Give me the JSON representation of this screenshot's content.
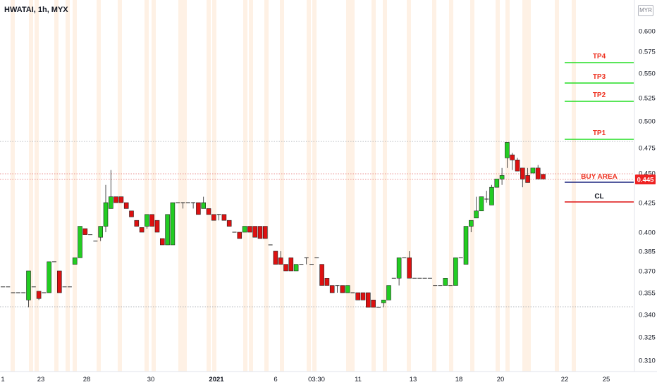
{
  "header": {
    "title": "HWATAI, 1h, MYX",
    "currency": "MYR"
  },
  "chart_data": {
    "type": "candlestick",
    "symbol": "HWATAI",
    "interval": "1h",
    "exchange": "MYX",
    "ylim": [
      0.305,
      0.612
    ],
    "y_ticks": [
      0.6,
      0.575,
      0.55,
      0.525,
      0.5,
      0.475,
      0.45,
      0.425,
      0.4,
      0.385,
      0.37,
      0.355,
      0.34,
      0.325,
      0.31
    ],
    "x_tick_labels": [
      "1",
      "23",
      "28",
      "30",
      "2021",
      "6",
      "03:30",
      "11",
      "13",
      "18",
      "20",
      "22",
      "25"
    ],
    "current_price": "0.445",
    "colors": {
      "up": "#22cc22",
      "down": "#dd1111",
      "level_green": "#22dd22",
      "level_red": "#dd1111",
      "level_blue": "#1a237e",
      "label_red": "#ee3322"
    },
    "levels": [
      {
        "label": "TP4",
        "value": 0.562,
        "color": "green"
      },
      {
        "label": "TP3",
        "value": 0.541,
        "color": "green"
      },
      {
        "label": "TP2",
        "value": 0.522,
        "color": "green"
      },
      {
        "label": "TP1",
        "value": 0.48,
        "color": "green"
      },
      {
        "label": "BUY AREA",
        "value": 0.443,
        "color": "blue"
      },
      {
        "label": "CL",
        "value": 0.425,
        "color": "red"
      }
    ],
    "candles": [
      [
        0.359,
        0.359,
        0.359,
        0.359
      ],
      [
        0.359,
        0.359,
        0.359,
        0.359
      ],
      [
        0.355,
        0.355,
        0.355,
        0.355
      ],
      [
        0.355,
        0.355,
        0.355,
        0.355
      ],
      [
        0.355,
        0.355,
        0.355,
        0.355
      ],
      [
        0.35,
        0.37,
        0.345,
        0.37
      ],
      [
        0.359,
        0.359,
        0.359,
        0.359
      ],
      [
        0.356,
        0.356,
        0.35,
        0.351
      ],
      [
        0.355,
        0.355,
        0.355,
        0.355
      ],
      [
        0.355,
        0.377,
        0.355,
        0.377
      ],
      [
        0.377,
        0.377,
        0.377,
        0.377
      ],
      [
        0.37,
        0.37,
        0.355,
        0.355
      ],
      [
        0.359,
        0.359,
        0.359,
        0.359
      ],
      [
        0.359,
        0.359,
        0.359,
        0.359
      ],
      [
        0.375,
        0.38,
        0.375,
        0.38
      ],
      [
        0.38,
        0.405,
        0.38,
        0.405
      ],
      [
        0.403,
        0.403,
        0.398,
        0.398
      ],
      [
        0.398,
        0.398,
        0.398,
        0.398
      ],
      [
        0.393,
        0.393,
        0.393,
        0.393
      ],
      [
        0.396,
        0.405,
        0.393,
        0.405
      ],
      [
        0.405,
        0.44,
        0.4,
        0.425
      ],
      [
        0.42,
        0.453,
        0.42,
        0.43
      ],
      [
        0.43,
        0.43,
        0.425,
        0.425
      ],
      [
        0.43,
        0.43,
        0.425,
        0.425
      ],
      [
        0.425,
        0.425,
        0.42,
        0.42
      ],
      [
        0.418,
        0.418,
        0.413,
        0.413
      ],
      [
        0.41,
        0.41,
        0.405,
        0.405
      ],
      [
        0.404,
        0.404,
        0.4,
        0.4
      ],
      [
        0.405,
        0.415,
        0.403,
        0.415
      ],
      [
        0.415,
        0.415,
        0.405,
        0.405
      ],
      [
        0.41,
        0.41,
        0.4,
        0.4
      ],
      [
        0.395,
        0.395,
        0.39,
        0.39
      ],
      [
        0.39,
        0.415,
        0.39,
        0.415
      ],
      [
        0.39,
        0.425,
        0.39,
        0.425
      ],
      [
        0.425,
        0.425,
        0.425,
        0.425
      ],
      [
        0.425,
        0.425,
        0.42,
        0.425
      ],
      [
        0.425,
        0.425,
        0.425,
        0.425
      ],
      [
        0.425,
        0.425,
        0.42,
        0.425
      ],
      [
        0.425,
        0.425,
        0.415,
        0.415
      ],
      [
        0.42,
        0.43,
        0.42,
        0.425
      ],
      [
        0.42,
        0.42,
        0.415,
        0.415
      ],
      [
        0.415,
        0.415,
        0.41,
        0.41
      ],
      [
        0.415,
        0.415,
        0.41,
        0.415
      ],
      [
        0.415,
        0.415,
        0.41,
        0.41
      ],
      [
        0.41,
        0.41,
        0.405,
        0.405
      ],
      [
        0.4,
        0.4,
        0.4,
        0.4
      ],
      [
        0.4,
        0.4,
        0.395,
        0.395
      ],
      [
        0.4,
        0.405,
        0.4,
        0.405
      ],
      [
        0.405,
        0.405,
        0.4,
        0.4
      ],
      [
        0.405,
        0.405,
        0.396,
        0.396
      ],
      [
        0.405,
        0.405,
        0.395,
        0.395
      ],
      [
        0.405,
        0.405,
        0.395,
        0.395
      ],
      [
        0.39,
        0.39,
        0.39,
        0.39
      ],
      [
        0.385,
        0.385,
        0.375,
        0.375
      ],
      [
        0.38,
        0.385,
        0.375,
        0.375
      ],
      [
        0.375,
        0.375,
        0.37,
        0.37
      ],
      [
        0.38,
        0.38,
        0.37,
        0.37
      ],
      [
        0.37,
        0.375,
        0.37,
        0.375
      ],
      [
        0.375,
        0.375,
        0.375,
        0.375
      ],
      [
        0.38,
        0.38,
        0.375,
        0.38
      ],
      [
        0.375,
        0.375,
        0.375,
        0.375
      ],
      [
        0.38,
        0.38,
        0.38,
        0.38
      ],
      [
        0.375,
        0.375,
        0.36,
        0.36
      ],
      [
        0.365,
        0.365,
        0.36,
        0.36
      ],
      [
        0.36,
        0.36,
        0.355,
        0.355
      ],
      [
        0.36,
        0.36,
        0.355,
        0.36
      ],
      [
        0.36,
        0.36,
        0.355,
        0.355
      ],
      [
        0.355,
        0.36,
        0.355,
        0.36
      ],
      [
        0.355,
        0.355,
        0.355,
        0.355
      ],
      [
        0.355,
        0.355,
        0.35,
        0.35
      ],
      [
        0.355,
        0.355,
        0.35,
        0.35
      ],
      [
        0.355,
        0.355,
        0.345,
        0.345
      ],
      [
        0.35,
        0.35,
        0.345,
        0.345
      ],
      [
        0.345,
        0.345,
        0.345,
        0.345
      ],
      [
        0.348,
        0.35,
        0.345,
        0.35
      ],
      [
        0.35,
        0.36,
        0.35,
        0.36
      ],
      [
        0.365,
        0.365,
        0.365,
        0.365
      ],
      [
        0.365,
        0.38,
        0.36,
        0.38
      ],
      [
        0.38,
        0.38,
        0.38,
        0.38
      ],
      [
        0.38,
        0.385,
        0.365,
        0.365
      ],
      [
        0.365,
        0.365,
        0.365,
        0.365
      ],
      [
        0.365,
        0.365,
        0.365,
        0.365
      ],
      [
        0.365,
        0.365,
        0.365,
        0.365
      ],
      [
        0.365,
        0.365,
        0.365,
        0.365
      ],
      [
        0.36,
        0.36,
        0.36,
        0.36
      ],
      [
        0.36,
        0.36,
        0.36,
        0.36
      ],
      [
        0.36,
        0.365,
        0.36,
        0.365
      ],
      [
        0.36,
        0.36,
        0.36,
        0.36
      ],
      [
        0.36,
        0.38,
        0.36,
        0.38
      ],
      [
        0.38,
        0.38,
        0.38,
        0.38
      ],
      [
        0.375,
        0.405,
        0.375,
        0.405
      ],
      [
        0.405,
        0.41,
        0.4,
        0.41
      ],
      [
        0.412,
        0.43,
        0.412,
        0.418
      ],
      [
        0.418,
        0.43,
        0.418,
        0.43
      ],
      [
        0.428,
        0.435,
        0.425,
        0.428
      ],
      [
        0.423,
        0.44,
        0.423,
        0.438
      ],
      [
        0.438,
        0.445,
        0.438,
        0.445
      ],
      [
        0.445,
        0.455,
        0.44,
        0.448
      ],
      [
        0.465,
        0.48,
        0.455,
        0.48
      ],
      [
        0.468,
        0.47,
        0.453,
        0.463
      ],
      [
        0.463,
        0.465,
        0.452,
        0.452
      ],
      [
        0.455,
        0.455,
        0.438,
        0.445
      ],
      [
        0.448,
        0.455,
        0.442,
        0.442
      ],
      [
        0.45,
        0.455,
        0.45,
        0.455
      ],
      [
        0.455,
        0.458,
        0.445,
        0.445
      ],
      [
        0.449,
        0.449,
        0.445,
        0.445
      ]
    ]
  }
}
